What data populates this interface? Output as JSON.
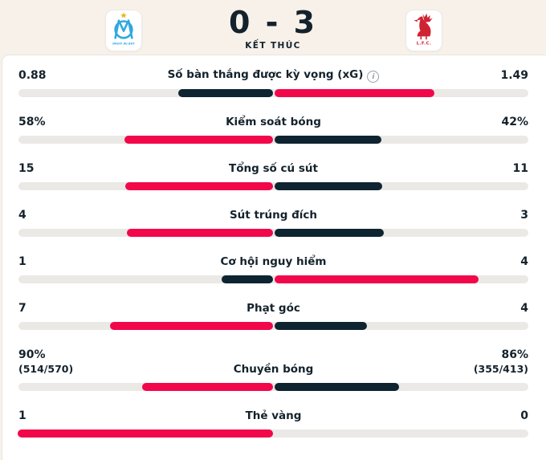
{
  "header": {
    "score": "0 - 3",
    "status": "KẾT THÚC",
    "home_team": "Olympique de Marseille",
    "away_team": "Liverpool FC",
    "om_motto": "DROIT AU BUT",
    "lfc_label": "L.F.C."
  },
  "colors": {
    "leader_bar": "#f2074a",
    "trailer_bar": "#0e2430",
    "track": "#eae9e6",
    "header_bg": "#f7f1ea",
    "text": "#14222c",
    "om_blue": "#2fa8e0",
    "om_gold": "#e8b424",
    "lfc_red": "#cf2333"
  },
  "stats": [
    {
      "label": "Số bàn thắng được kỳ vọng (xG)",
      "has_info_icon": true,
      "home": "0.88",
      "away": "1.49",
      "home_num": 0.88,
      "away_num": 1.49,
      "leader": "away"
    },
    {
      "label": "Kiểm soát bóng",
      "has_info_icon": false,
      "home": "58%",
      "away": "42%",
      "home_num": 58,
      "away_num": 42,
      "leader": "home"
    },
    {
      "label": "Tổng số cú sút",
      "has_info_icon": false,
      "home": "15",
      "away": "11",
      "home_num": 15,
      "away_num": 11,
      "leader": "home"
    },
    {
      "label": "Sút trúng đích",
      "has_info_icon": false,
      "home": "4",
      "away": "3",
      "home_num": 4,
      "away_num": 3,
      "leader": "home"
    },
    {
      "label": "Cơ hội nguy hiểm",
      "has_info_icon": false,
      "home": "1",
      "away": "4",
      "home_num": 1,
      "away_num": 4,
      "leader": "away"
    },
    {
      "label": "Phạt góc",
      "has_info_icon": false,
      "home": "7",
      "away": "4",
      "home_num": 7,
      "away_num": 4,
      "leader": "home"
    },
    {
      "label": "Chuyền bóng",
      "has_info_icon": false,
      "home": "90%",
      "home_sub": "(514/570)",
      "away": "86%",
      "away_sub": "(355/413)",
      "home_num": 90,
      "away_num": 86,
      "leader": "home"
    },
    {
      "label": "Thẻ vàng",
      "has_info_icon": false,
      "home": "1",
      "away": "0",
      "home_num": 1,
      "away_num": 0,
      "leader": "home"
    }
  ]
}
